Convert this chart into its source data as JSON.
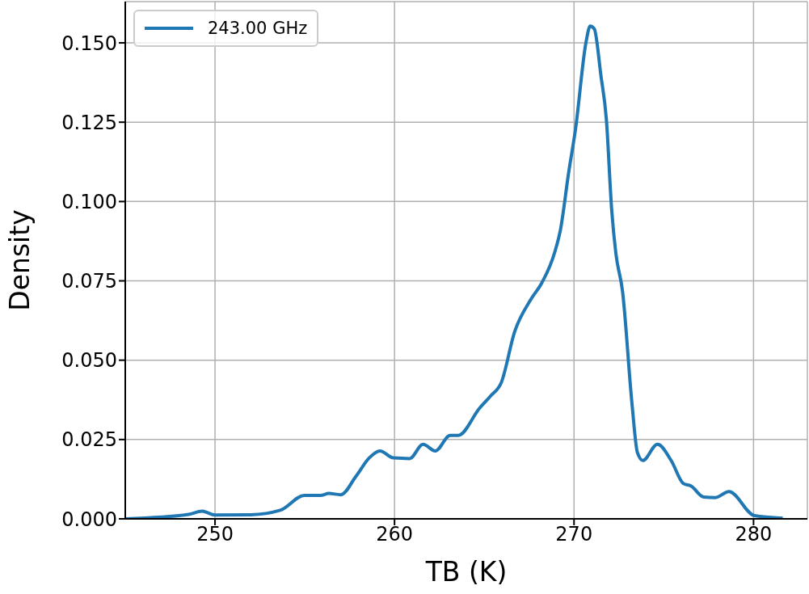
{
  "chart_data": {
    "type": "line",
    "xlabel": "TB (K)",
    "ylabel": "Density",
    "x": [
      245,
      248.53,
      249.28,
      250.0,
      251.98,
      253.63,
      254.98,
      255.88,
      256.34,
      257.01,
      257.84,
      258.59,
      259.19,
      259.94,
      260.84,
      261.59,
      262.27,
      263.1,
      263.55,
      264.74,
      265.35,
      265.95,
      266.7,
      267.6,
      268.2,
      268.95,
      269.25,
      269.7,
      270.08,
      270.68,
      270.9,
      271.13,
      271.5,
      271.8,
      272.1,
      272.33,
      272.7,
      273.23,
      273.53,
      273.83,
      274.65,
      275.41,
      276.08,
      276.53,
      277.21,
      277.88,
      278.63,
      280.05,
      281.63
    ],
    "series": [
      {
        "name": "243.00 GHz",
        "color": "#1f77b4",
        "values": [
          0.0,
          0.0014,
          0.0024,
          0.0012,
          0.0013,
          0.0027,
          0.0074,
          0.0074,
          0.008,
          0.0076,
          0.0133,
          0.0192,
          0.0214,
          0.0192,
          0.019,
          0.0235,
          0.0214,
          0.0263,
          0.0263,
          0.0349,
          0.0387,
          0.043,
          0.0591,
          0.0692,
          0.0743,
          0.0845,
          0.0913,
          0.1091,
          0.1227,
          0.1506,
          0.1553,
          0.1544,
          0.1396,
          0.126,
          0.0972,
          0.0837,
          0.0718,
          0.0362,
          0.0209,
          0.0184,
          0.0235,
          0.0184,
          0.0112,
          0.0103,
          0.0069,
          0.0067,
          0.0086,
          0.001,
          0.0002
        ]
      }
    ],
    "xlim": [
      245,
      283
    ],
    "xticks": [
      250,
      260,
      270,
      280
    ],
    "ylim": [
      0,
      0.163
    ],
    "yticks": [
      {
        "value": 0,
        "label": "0.000"
      },
      {
        "value": 0.025,
        "label": "0.025"
      },
      {
        "value": 0.05,
        "label": "0.050"
      },
      {
        "value": 0.075,
        "label": "0.075"
      },
      {
        "value": 0.1,
        "label": "0.100"
      },
      {
        "value": 0.125,
        "label": "0.125"
      },
      {
        "value": 0.15,
        "label": "0.150"
      }
    ],
    "grid": true,
    "legend": "top left",
    "line_style": "solid"
  }
}
